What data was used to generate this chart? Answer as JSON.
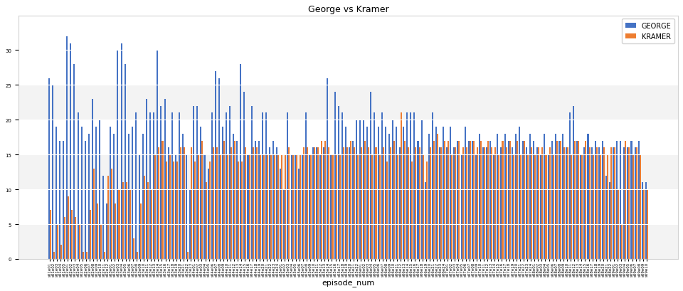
{
  "title": "George vs Kramer",
  "xlabel": "episode_num",
  "ylabel": "",
  "george_color": "#4472C4",
  "kramer_color": "#ED7D31",
  "ylim": [
    0,
    35
  ],
  "yticks": [
    0,
    5,
    10,
    15,
    20,
    25,
    30
  ],
  "george_values": [
    26,
    25,
    19,
    17,
    17,
    32,
    31,
    28,
    21,
    19,
    17,
    18,
    23,
    19,
    20,
    12,
    8,
    19,
    18,
    30,
    31,
    28,
    18,
    19,
    21,
    15,
    18,
    23,
    21,
    21,
    30,
    22,
    23,
    16,
    21,
    15,
    21,
    18,
    15,
    10,
    22,
    22,
    19,
    15,
    13,
    21,
    27,
    26,
    19,
    21,
    22,
    18,
    17,
    28,
    24,
    15,
    22,
    17,
    17,
    21,
    21,
    16,
    17,
    16,
    13,
    10,
    21,
    15,
    15,
    13,
    15,
    21,
    15,
    16,
    16,
    15,
    16,
    26,
    15,
    24,
    22,
    21,
    19,
    16,
    17,
    20,
    20,
    20,
    19,
    24,
    21,
    19,
    21,
    19,
    18,
    20,
    19,
    16,
    19,
    21,
    21,
    21,
    17,
    20,
    11,
    18,
    21,
    19,
    16,
    19,
    16,
    19,
    16,
    17,
    15,
    19,
    17,
    17,
    15,
    18,
    16,
    16,
    17,
    15,
    18,
    16,
    18,
    17,
    16,
    18,
    19,
    17,
    16,
    18,
    17,
    16,
    15,
    18,
    15,
    17,
    18,
    17,
    18,
    16,
    21,
    22,
    17,
    15,
    16,
    18,
    16,
    17,
    16,
    17,
    12,
    11,
    16,
    17,
    17,
    16,
    16,
    17,
    16,
    17,
    11,
    11
  ],
  "kramer_values": [
    7,
    1,
    5,
    2,
    6,
    9,
    7,
    6,
    5,
    1,
    1,
    7,
    13,
    8,
    5,
    1,
    12,
    13,
    8,
    10,
    11,
    11,
    10,
    3,
    1,
    8,
    12,
    11,
    10,
    15,
    16,
    17,
    14,
    15,
    14,
    14,
    16,
    16,
    1,
    16,
    14,
    15,
    17,
    11,
    14,
    16,
    16,
    15,
    17,
    15,
    16,
    17,
    14,
    14,
    16,
    15,
    16,
    16,
    15,
    15,
    15,
    15,
    15,
    15,
    15,
    15,
    16,
    15,
    15,
    15,
    16,
    16,
    15,
    16,
    16,
    17,
    17,
    16,
    15,
    15,
    15,
    16,
    16,
    17,
    16,
    15,
    16,
    17,
    16,
    15,
    16,
    15,
    16,
    14,
    16,
    17,
    15,
    21,
    17,
    16,
    14,
    16,
    16,
    15,
    14,
    16,
    17,
    18,
    16,
    17,
    17,
    15,
    16,
    17,
    16,
    16,
    17,
    17,
    16,
    17,
    16,
    17,
    16,
    16,
    15,
    17,
    16,
    17,
    15,
    17,
    15,
    17,
    15,
    16,
    15,
    16,
    16,
    15,
    16,
    15,
    17,
    17,
    16,
    16,
    15,
    17,
    17,
    15,
    17,
    16,
    15,
    16,
    15,
    16,
    15,
    16,
    16,
    10,
    5,
    17,
    16,
    15,
    16,
    15,
    10,
    10
  ],
  "bar_width": 0.4,
  "figsize": [
    9.6,
    4.1
  ],
  "dpi": 100,
  "title_fontsize": 9,
  "axis_label_fontsize": 8,
  "tick_fontsize": 4,
  "legend_fontsize": 7,
  "legend_marker_size": 10
}
